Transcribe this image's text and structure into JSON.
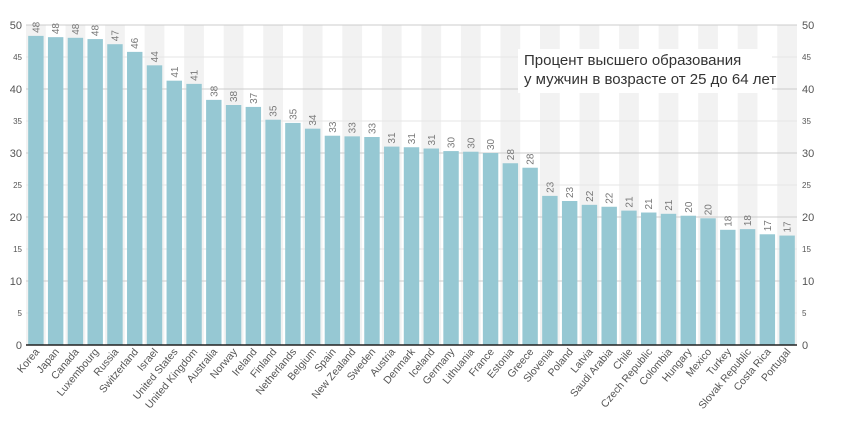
{
  "chart_data": {
    "type": "bar",
    "title": "",
    "xlabel": "",
    "ylabel": "",
    "annotation": [
      "Процент высшего образования",
      "у мужчин в возрасте от 25 до 64 лет"
    ],
    "categories": [
      "Korea",
      "Japan",
      "Canada",
      "Luxembourg",
      "Russia",
      "Switzerland",
      "Israel",
      "United States",
      "United Kingdom",
      "Australia",
      "Norway",
      "Ireland",
      "Finland",
      "Netherlands",
      "Belgium",
      "Spain",
      "New Zealand",
      "Sweden",
      "Austria",
      "Denmark",
      "Iceland",
      "Germany",
      "Lithuania",
      "France",
      "Estonia",
      "Greece",
      "Slovenia",
      "Poland",
      "Latvia",
      "Saudi Arabia",
      "Chile",
      "Czech Republic",
      "Colombia",
      "Hungary",
      "Mexico",
      "Turkey",
      "Slovak Republic",
      "Costa Rica",
      "Portugal"
    ],
    "values": [
      48.3,
      48.1,
      48.0,
      47.8,
      47.0,
      45.8,
      43.7,
      41.3,
      40.8,
      38.3,
      37.5,
      37.2,
      35.2,
      34.7,
      33.8,
      32.7,
      32.6,
      32.5,
      31.0,
      30.9,
      30.7,
      30.3,
      30.2,
      30.0,
      28.4,
      27.7,
      23.3,
      22.5,
      21.9,
      21.6,
      21.0,
      20.7,
      20.5,
      20.2,
      19.8,
      18.0,
      18.1,
      17.3,
      17.1
    ],
    "data_labels": [
      "48",
      "48",
      "48",
      "48",
      "47",
      "46",
      "44",
      "41",
      "41",
      "38",
      "38",
      "37",
      "35",
      "35",
      "34",
      "33",
      "33",
      "33",
      "31",
      "31",
      "31",
      "30",
      "30",
      "30",
      "28",
      "28",
      "23",
      "23",
      "22",
      "22",
      "21",
      "21",
      "21",
      "20",
      "20",
      "18",
      "18",
      "17",
      "17"
    ],
    "ylim": [
      0,
      50
    ],
    "y_ticks": [
      0,
      5,
      10,
      15,
      20,
      25,
      30,
      35,
      40,
      45,
      50
    ],
    "y_axis_sides": [
      "left",
      "right"
    ],
    "grid": true,
    "legend": "none",
    "colors": {
      "bar": "#96c8d3",
      "band": "#f2f2f2",
      "grid_major": "#cccccc",
      "grid_minor": "#e6e6e6",
      "axis": "#222222",
      "text": "#555555",
      "value_label": "#777777"
    }
  }
}
